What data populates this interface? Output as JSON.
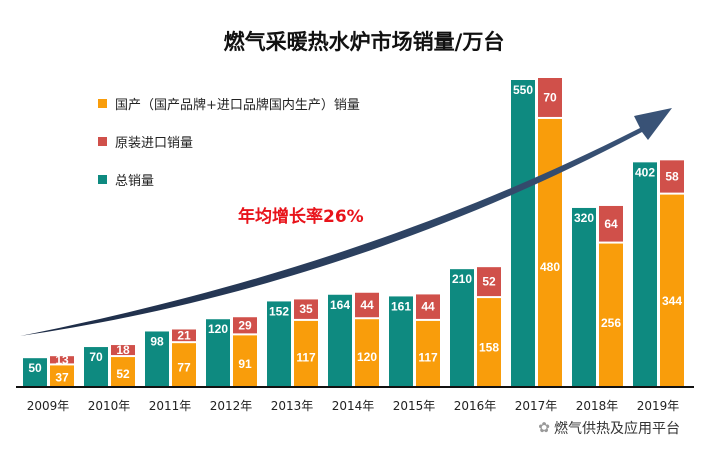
{
  "chart_data": {
    "type": "bar",
    "title": "燃气采暖热水炉市场销量/万台",
    "categories": [
      "2009年",
      "2010年",
      "2011年",
      "2012年",
      "2013年",
      "2014年",
      "2015年",
      "2016年",
      "2017年",
      "2018年",
      "2019年"
    ],
    "series": [
      {
        "name": "总销量",
        "color": "#0e8a80",
        "values": [
          50,
          70,
          98,
          120,
          152,
          164,
          161,
          210,
          550,
          320,
          402
        ]
      },
      {
        "name": "国产（国产品牌+进口品牌国内生产）销量",
        "color": "#f99d0b",
        "values": [
          37,
          52,
          77,
          91,
          117,
          120,
          117,
          158,
          480,
          256,
          344
        ]
      },
      {
        "name": "原装进口销量",
        "color": "#d0504a",
        "values": [
          13,
          18,
          21,
          29,
          35,
          44,
          44,
          52,
          70,
          64,
          58
        ]
      }
    ],
    "ylim": [
      0,
      560
    ],
    "annotation": "年均增长率26%",
    "legend_position": "top-left"
  },
  "watermark": "燃气供热及应用平台"
}
